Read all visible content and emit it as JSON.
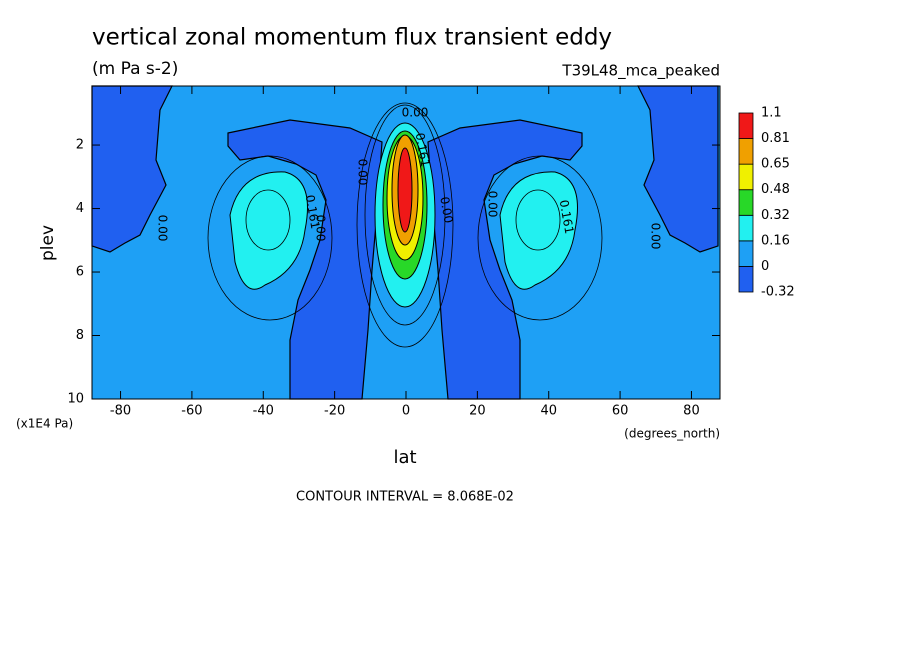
{
  "chart_data": {
    "type": "contour",
    "title": "vertical zonal momentum flux transient eddy",
    "subtitle": "(m Pa s-2)",
    "dataset": "T39L48_mca_peaked",
    "x_label": "lat",
    "x_units": "(degrees_north)",
    "y_label": "plev",
    "y_units": "(x1E4 Pa)",
    "footer": "CONTOUR INTERVAL = 8.068E-02",
    "xlim": [
      -88,
      88
    ],
    "xticks": [
      -80,
      -60,
      -40,
      -20,
      0,
      20,
      40,
      60,
      80
    ],
    "ylim": [
      0.14,
      10
    ],
    "y_inverted": true,
    "yticks": [
      2,
      4,
      6,
      8,
      10
    ],
    "levels": [
      -0.32,
      0,
      0.16,
      0.32,
      0.48,
      0.65,
      0.81,
      1.1
    ],
    "colors": [
      "#2060f0",
      "#1ea0f5",
      "#22f0f0",
      "#28d828",
      "#f0f000",
      "#f0a000",
      "#f01818"
    ],
    "contour_labels": [
      "0.00",
      "0.161",
      "0.00",
      "0.161",
      "0.00",
      "0.00",
      "0.00",
      "0.00",
      "0.161",
      "0.00"
    ]
  }
}
